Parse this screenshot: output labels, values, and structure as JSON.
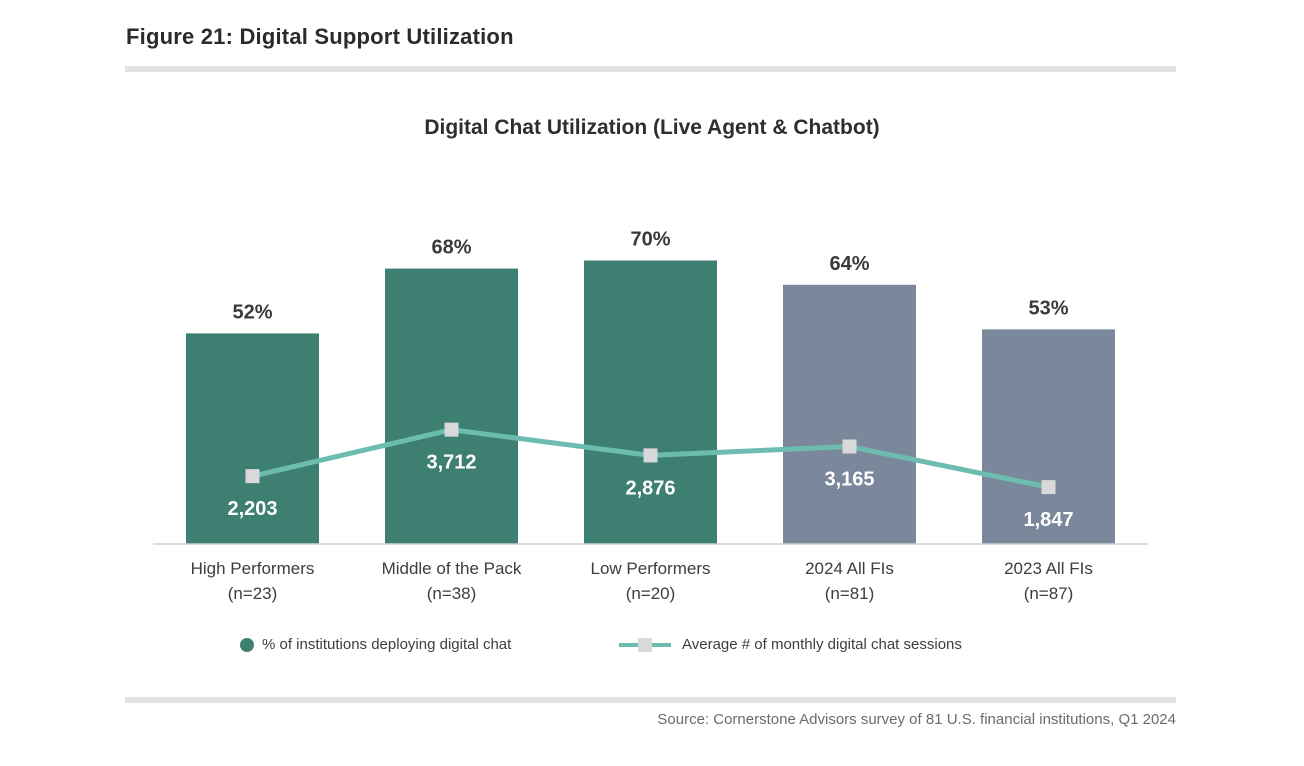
{
  "figure_title": "Figure 21: Digital Support Utilization",
  "source": "Source: Cornerstone Advisors survey of 81 U.S. financial institutions, Q1 2024",
  "legend": {
    "bars": "% of institutions deploying digital chat",
    "line": "Average # of monthly digital chat sessions"
  },
  "colors": {
    "bar_primary": "#3d8072",
    "bar_secondary": "#7b879a",
    "line": "#6cbdb0",
    "marker": "#d9d9d9"
  },
  "chart_data": {
    "type": "bar",
    "title": "Digital Chat Utilization (Live Agent & Chatbot)",
    "categories": [
      [
        "High Performers",
        "(n=23)"
      ],
      [
        "Middle of the Pack",
        "(n=38)"
      ],
      [
        "Low Performers",
        "(n=20)"
      ],
      [
        "2024 All FIs",
        "(n=81)"
      ],
      [
        "2023 All FIs",
        "(n=87)"
      ]
    ],
    "series": [
      {
        "name": "% of institutions deploying digital chat",
        "type": "bar",
        "values": [
          52,
          68,
          70,
          64,
          53
        ],
        "labels": [
          "52%",
          "68%",
          "70%",
          "64%",
          "53%"
        ],
        "bar_colors": [
          "#3d8072",
          "#3d8072",
          "#3d8072",
          "#7b879a",
          "#7b879a"
        ]
      },
      {
        "name": "Average # of monthly digital chat sessions",
        "type": "line",
        "values": [
          2203,
          3712,
          2876,
          3165,
          1847
        ],
        "labels": [
          "2,203",
          "3,712",
          "2,876",
          "3,165",
          "1,847"
        ]
      }
    ],
    "grid": false,
    "legend_position": "bottom"
  }
}
